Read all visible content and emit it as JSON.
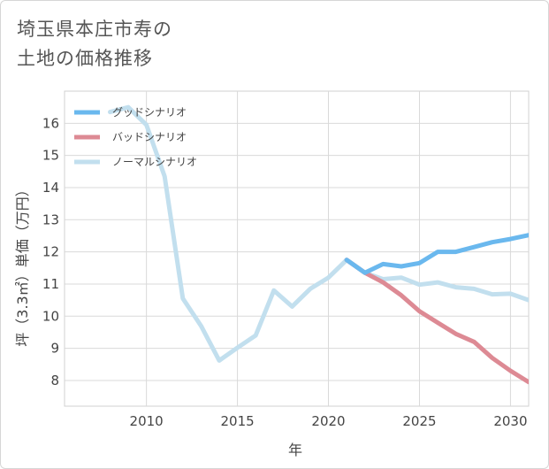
{
  "chart_data": {
    "type": "line",
    "title": "埼玉県本庄市寿の\n土地の価格推移",
    "xlabel": "年",
    "ylabel": "坪（3.3㎡）単価（万円）",
    "xlim": [
      2005.5,
      2031
    ],
    "ylim": [
      7.2,
      17.0
    ],
    "x_ticks": [
      2010,
      2015,
      2020,
      2025,
      2030
    ],
    "y_ticks": [
      8,
      9,
      10,
      11,
      12,
      13,
      14,
      15,
      16
    ],
    "legend_position": "top-left",
    "series": [
      {
        "name": "グッドシナリオ",
        "color": "#6ab8ee",
        "x": [
          2021,
          2022,
          2023,
          2024,
          2025,
          2026,
          2027,
          2028,
          2029,
          2030,
          2031
        ],
        "values": [
          11.75,
          11.35,
          11.62,
          11.55,
          11.65,
          12.0,
          12.0,
          12.15,
          12.3,
          12.4,
          12.52
        ]
      },
      {
        "name": "バッドシナリオ",
        "color": "#dd8a94",
        "x": [
          2021,
          2022,
          2023,
          2024,
          2025,
          2026,
          2027,
          2028,
          2029,
          2030,
          2031
        ],
        "values": [
          11.75,
          11.35,
          11.05,
          10.65,
          10.15,
          9.8,
          9.45,
          9.2,
          8.7,
          8.3,
          7.95
        ]
      },
      {
        "name": "ノーマルシナリオ",
        "color": "#c2dfee",
        "x": [
          2008,
          2009,
          2010,
          2011,
          2012,
          2013,
          2014,
          2015,
          2016,
          2017,
          2018,
          2019,
          2020,
          2021,
          2022,
          2023,
          2024,
          2025,
          2026,
          2027,
          2028,
          2029,
          2030,
          2031
        ],
        "values": [
          16.35,
          16.5,
          15.95,
          14.35,
          10.55,
          9.7,
          8.62,
          9.02,
          9.4,
          10.8,
          10.3,
          10.85,
          11.2,
          11.75,
          11.35,
          11.15,
          11.2,
          10.98,
          11.05,
          10.9,
          10.85,
          10.68,
          10.7,
          10.5
        ]
      }
    ]
  }
}
